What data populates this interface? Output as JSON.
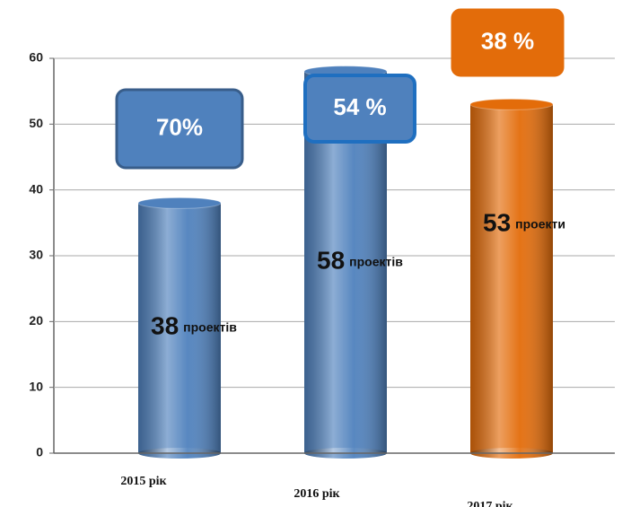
{
  "chart_data": {
    "type": "bar",
    "categories": [
      "2015 рік",
      "2016 рік",
      "2017 рік"
    ],
    "values": [
      38,
      58,
      53
    ],
    "label_units": [
      "проектів",
      "проектів",
      "проекти"
    ],
    "colors": [
      "#4f81bd",
      "#4f81bd",
      "#e36c0a"
    ],
    "annotations": [
      "70%",
      "54 %",
      "38 %"
    ],
    "ylim": [
      0,
      60
    ],
    "yticks": [
      0,
      10,
      20,
      30,
      40,
      50,
      60
    ],
    "grid": true
  }
}
